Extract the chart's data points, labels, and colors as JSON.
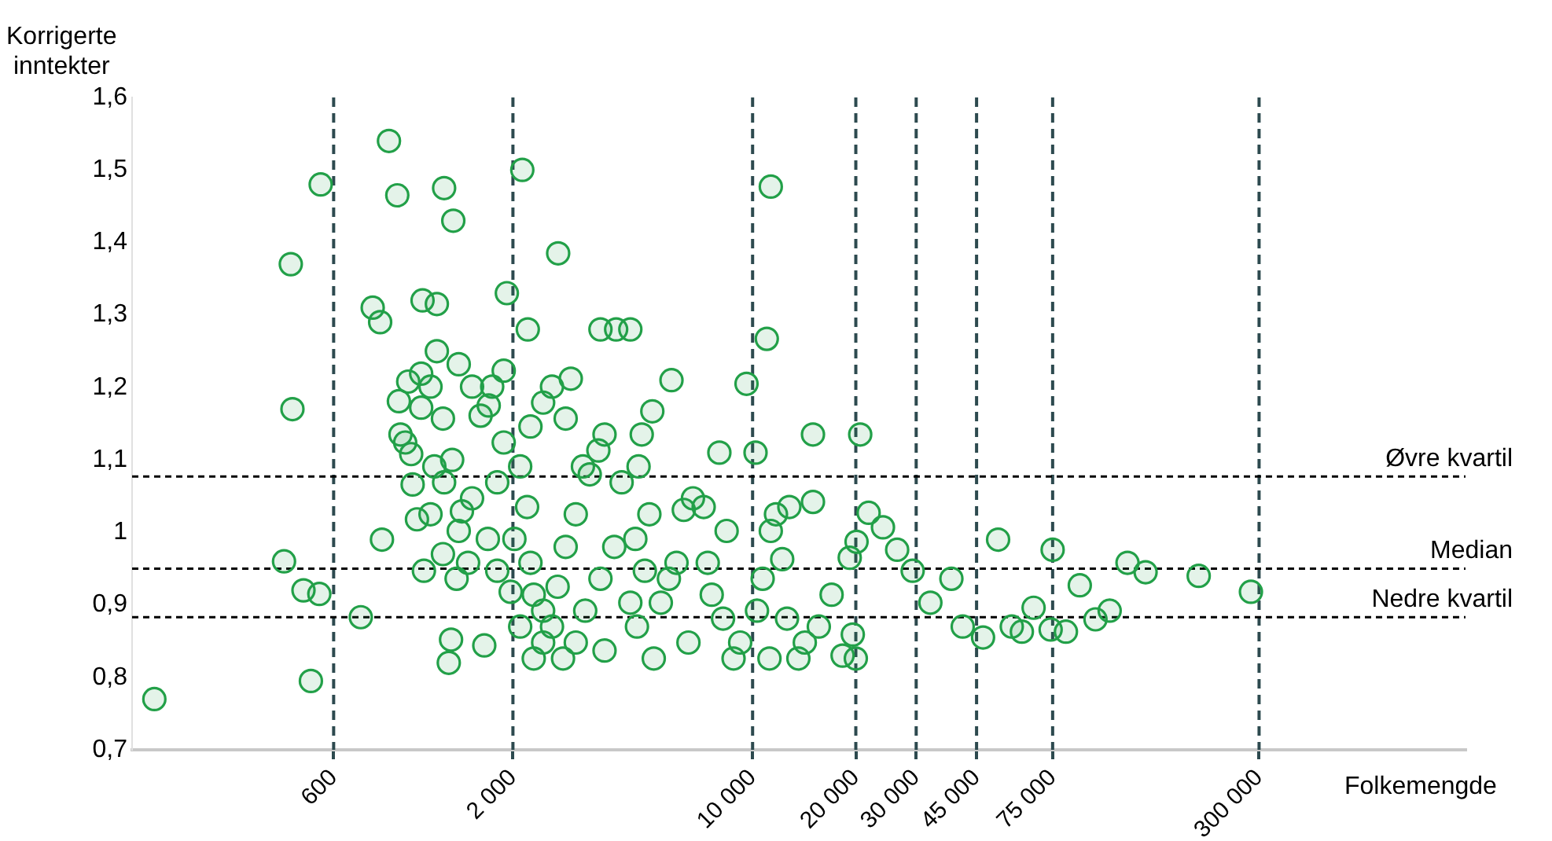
{
  "chart_data": {
    "type": "scatter",
    "xlabel": "Folkemengde",
    "ylabel": "Korrigerte inntekter",
    "log": "x",
    "grid": "x",
    "legend": false,
    "marker": "circle",
    "xlim": [
      155,
      1200000
    ],
    "ylim": [
      0.7,
      1.6
    ],
    "xticks": [
      {
        "value": 600,
        "label": "600"
      },
      {
        "value": 2000,
        "label": "2 000"
      },
      {
        "value": 10000,
        "label": "10 000"
      },
      {
        "value": 20000,
        "label": "20 000"
      },
      {
        "value": 30000,
        "label": "30 000"
      },
      {
        "value": 45000,
        "label": "45 000"
      },
      {
        "value": 75000,
        "label": "75 000"
      },
      {
        "value": 300000,
        "label": "300 000"
      }
    ],
    "yticks": [
      {
        "value": 0.7,
        "label": "0,7"
      },
      {
        "value": 0.8,
        "label": "0,8"
      },
      {
        "value": 0.9,
        "label": "0,9"
      },
      {
        "value": 1,
        "label": "1"
      },
      {
        "value": 1.1,
        "label": "1,1"
      },
      {
        "value": 1.2,
        "label": "1,2"
      },
      {
        "value": 1.3,
        "label": "1,3"
      },
      {
        "value": 1.4,
        "label": "1,4"
      },
      {
        "value": 1.5,
        "label": "1,5"
      },
      {
        "value": 1.6,
        "label": "1,6"
      }
    ],
    "ref_lines": [
      {
        "axis": "y",
        "value": 1.077,
        "label": "Øvre kvartil",
        "color": "#000000",
        "line_style": "dashed"
      },
      {
        "axis": "y",
        "value": 0.95,
        "label": "Median",
        "color": "#000000",
        "line_style": "dashed"
      },
      {
        "axis": "y",
        "value": 0.883,
        "label": "Nedre kvartil",
        "color": "#000000",
        "line_style": "dashed"
      }
    ],
    "series": [
      {
        "color": "#22a048",
        "x": [
          180,
          450,
          455,
          430,
          490,
          545,
          515,
          550,
          720,
          870,
          920,
          830,
          780,
          820,
          1090,
          1200,
          1260,
          1340,
          2130,
          1920,
          2210,
          2710,
          3600,
          4000,
          4400,
          11300,
          11000,
          9600,
          10200,
          8000,
          15000,
          20600,
          5800,
          5100,
          4750,
          52000,
          75000,
          124000,
          140000,
          200000,
          284000,
          90000,
          66000,
          110000,
          74000,
          100000,
          82000,
          57000,
          61000,
          47000,
          41000,
          38000,
          33000,
          29300,
          26400,
          24000,
          21800,
          19200,
          20100,
          20000,
          18300,
          19600,
          17000,
          15600,
          14200,
          13600,
          12600,
          12200,
          11700,
          12800,
          15000,
          11300,
          10700,
          10300,
          11200,
          9200,
          8800,
          8200,
          7600,
          7400,
          8400,
          7200,
          6700,
          6300,
          6000,
          5700,
          5400,
          6500,
          5150,
          4600,
          4400,
          4850,
          4550,
          5000,
          4650,
          4150,
          3700,
          3550,
          3350,
          3950,
          3600,
          3250,
          3050,
          3700,
          2800,
          2600,
          2300,
          2450,
          2700,
          2850,
          3050,
          3200,
          2850,
          2600,
          2950,
          2450,
          2250,
          2100,
          2200,
          2020,
          1970,
          2250,
          2450,
          2100,
          2300,
          1740,
          1880,
          1700,
          1880,
          1800,
          1690,
          1800,
          1650,
          1320,
          1300,
          1480,
          1370,
          1250,
          1150,
          1420,
          1520,
          1390,
          1050,
          1100,
          1020,
          1260,
          1180,
          1330,
          940,
          1010,
          930,
          990,
          1080,
          1200,
          1390,
          1080,
          1250,
          1150,
          1520,
          1610,
          970
        ],
        "values": [
          0.77,
          1.37,
          1.17,
          0.96,
          0.92,
          0.915,
          0.795,
          1.48,
          0.883,
          1.54,
          1.465,
          0.99,
          1.31,
          1.29,
          1.32,
          1.315,
          1.475,
          1.43,
          1.5,
          1.33,
          1.28,
          1.385,
          1.28,
          1.28,
          1.28,
          1.477,
          1.267,
          1.205,
          1.11,
          1.11,
          1.135,
          1.135,
          1.21,
          1.167,
          1.135,
          0.99,
          0.976,
          0.958,
          0.945,
          0.94,
          0.918,
          0.927,
          0.896,
          0.892,
          0.866,
          0.88,
          0.863,
          0.87,
          0.863,
          0.855,
          0.87,
          0.936,
          0.903,
          0.947,
          0.976,
          1.007,
          1.027,
          0.965,
          0.987,
          0.826,
          0.83,
          0.859,
          0.914,
          0.87,
          0.848,
          0.826,
          0.881,
          0.963,
          1.025,
          1.035,
          1.042,
          1.002,
          0.936,
          0.892,
          0.826,
          0.848,
          0.826,
          0.881,
          0.914,
          0.958,
          1.002,
          1.035,
          1.047,
          1.031,
          0.958,
          0.936,
          0.903,
          0.848,
          0.826,
          0.87,
          0.903,
          0.947,
          0.991,
          1.025,
          1.091,
          1.069,
          1.135,
          1.113,
          1.08,
          0.98,
          0.936,
          0.892,
          0.848,
          0.837,
          0.826,
          0.87,
          0.826,
          0.892,
          0.925,
          0.98,
          1.025,
          1.091,
          1.157,
          1.201,
          1.212,
          1.179,
          1.146,
          1.091,
          1.035,
          0.991,
          0.918,
          0.958,
          0.848,
          0.87,
          0.914,
          1.201,
          1.223,
          1.175,
          1.124,
          1.069,
          0.991,
          0.947,
          0.844,
          0.852,
          0.82,
          0.958,
          0.936,
          0.97,
          1.025,
          1.029,
          1.047,
          1.002,
          1.018,
          0.947,
          1.066,
          1.069,
          1.091,
          1.1,
          1.135,
          1.108,
          1.181,
          1.208,
          1.219,
          1.25,
          1.232,
          1.172,
          1.157,
          1.201,
          1.201,
          1.161,
          1.124
        ]
      }
    ]
  }
}
